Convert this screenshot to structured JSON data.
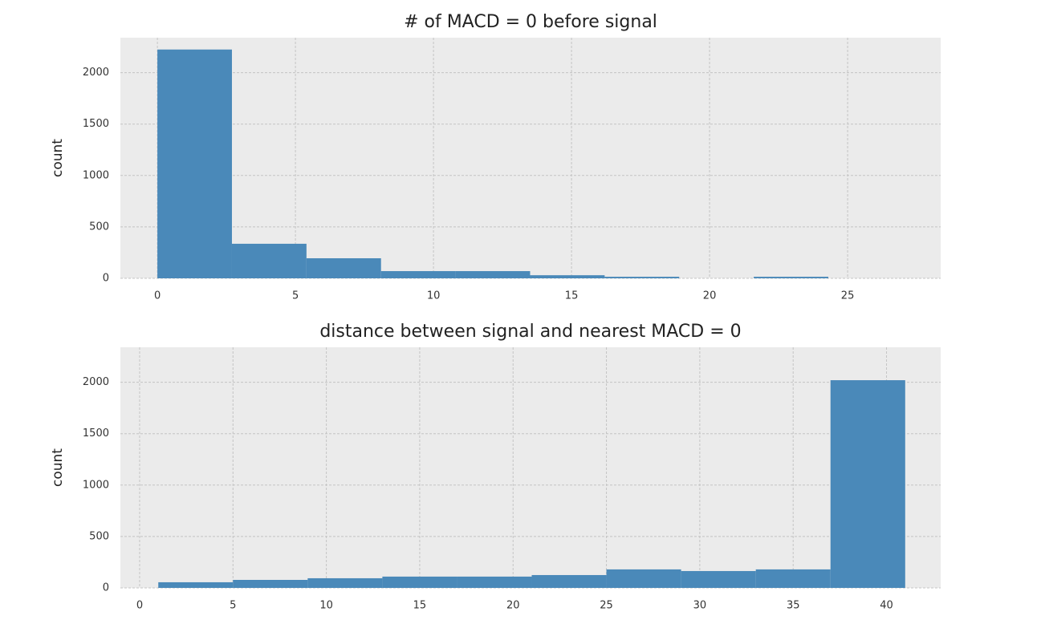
{
  "chart_data": [
    {
      "type": "histogram",
      "title": "# of MACD = 0 before signal",
      "y_label": "count",
      "bins": [
        0,
        2.7,
        5.4,
        8.1,
        10.8,
        13.5,
        16.2,
        18.9,
        21.6,
        24.3,
        27
      ],
      "values": [
        2225,
        336,
        195,
        70,
        70,
        30,
        15,
        0,
        15,
        0
      ],
      "color": "#4a89b9",
      "xlim": [
        -1.34,
        28.37
      ],
      "ylim": [
        0,
        2340
      ],
      "xticks": [
        0,
        5,
        10,
        15,
        20,
        25
      ],
      "yticks": [
        0,
        500,
        1000,
        1500,
        2000
      ],
      "grid": true
    },
    {
      "type": "histogram",
      "title": "distance between signal and nearest MACD = 0",
      "y_label": "count",
      "bins": [
        1,
        5,
        9,
        13,
        17,
        21,
        25,
        29,
        33,
        37,
        41
      ],
      "values": [
        55,
        78,
        94,
        110,
        110,
        125,
        180,
        164,
        180,
        2020
      ],
      "color": "#4a89b9",
      "xlim": [
        -1.03,
        42.9
      ],
      "ylim": [
        0,
        2340
      ],
      "xticks": [
        0,
        5,
        10,
        15,
        20,
        25,
        30,
        35,
        40
      ],
      "yticks": [
        0,
        500,
        1000,
        1500,
        2000
      ],
      "grid": true
    }
  ]
}
